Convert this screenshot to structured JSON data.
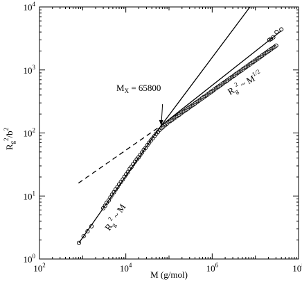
{
  "chart_data": {
    "type": "scatter",
    "title": "",
    "x_scale": "log",
    "y_scale": "log",
    "xlim": [
      100,
      100000000
    ],
    "ylim": [
      1,
      10000
    ],
    "grid": false,
    "xlabel": "M (g/mol)",
    "ylabel": {
      "base": "R",
      "sub": "g",
      "sup": "2",
      "tail": "/b",
      "tail_sup": "2"
    },
    "x_ticks": [
      {
        "value": 100,
        "base": "10",
        "exp": "2"
      },
      {
        "value": 10000,
        "base": "10",
        "exp": "4"
      },
      {
        "value": 1000000,
        "base": "10",
        "exp": "6"
      },
      {
        "value": 100000000,
        "base": "10",
        "exp": "8"
      }
    ],
    "y_ticks": [
      {
        "value": 1,
        "base": "10",
        "exp": "0"
      },
      {
        "value": 10,
        "base": "10",
        "exp": "1"
      },
      {
        "value": 100,
        "base": "10",
        "exp": "2"
      },
      {
        "value": 1000,
        "base": "10",
        "exp": "3"
      },
      {
        "value": 10000,
        "base": "10",
        "exp": "4"
      }
    ],
    "series": [
      {
        "style": "open-circles",
        "points": [
          [
            820,
            1.8
          ],
          [
            1050,
            2.3
          ],
          [
            1300,
            2.75
          ],
          [
            1600,
            3.3
          ],
          [
            3000,
            6.4
          ],
          [
            3300,
            7.0
          ],
          [
            3600,
            7.8
          ],
          [
            4000,
            8.5
          ],
          [
            4400,
            9.5
          ],
          [
            4800,
            10.5
          ],
          [
            5300,
            11.5
          ],
          [
            5800,
            12.7
          ],
          [
            6400,
            13.9
          ],
          [
            7000,
            15.3
          ],
          [
            7700,
            16.7
          ],
          [
            8500,
            18.3
          ],
          [
            9300,
            20.2
          ],
          [
            10200,
            22
          ],
          [
            11200,
            24
          ],
          [
            12300,
            27
          ],
          [
            13500,
            29
          ],
          [
            14800,
            32
          ],
          [
            16300,
            35
          ],
          [
            17900,
            38
          ],
          [
            19700,
            41
          ],
          [
            21600,
            45
          ],
          [
            23800,
            49
          ],
          [
            26100,
            54
          ],
          [
            28700,
            58
          ],
          [
            31500,
            64
          ],
          [
            34600,
            70
          ],
          [
            38000,
            76
          ],
          [
            41800,
            82
          ],
          [
            45900,
            89
          ],
          [
            50400,
            97
          ],
          [
            55400,
            104
          ],
          [
            60800,
            112
          ],
          [
            66800,
            119
          ],
          [
            73400,
            126
          ],
          [
            80600,
            133
          ],
          [
            88600,
            140
          ],
          [
            97300,
            148
          ],
          [
            106900,
            155
          ],
          [
            117500,
            162
          ],
          [
            129100,
            170
          ],
          [
            141800,
            178
          ],
          [
            155800,
            186
          ],
          [
            171200,
            195
          ],
          [
            188100,
            204
          ],
          [
            206700,
            214
          ],
          [
            227100,
            224
          ],
          [
            249500,
            234
          ],
          [
            274100,
            245
          ],
          [
            301200,
            257
          ],
          [
            330900,
            269
          ],
          [
            363600,
            281
          ],
          [
            399500,
            294
          ],
          [
            438900,
            308
          ],
          [
            482300,
            323
          ],
          [
            529900,
            338
          ],
          [
            582200,
            354
          ],
          [
            639700,
            371
          ],
          [
            702900,
            388
          ],
          [
            772300,
            406
          ],
          [
            848500,
            425
          ],
          [
            932300,
            446
          ],
          [
            1024000,
            467
          ],
          [
            1125000,
            489
          ],
          [
            1236000,
            512
          ],
          [
            1358000,
            536
          ],
          [
            1492000,
            561
          ],
          [
            1640000,
            587
          ],
          [
            1802000,
            615
          ],
          [
            1980000,
            644
          ],
          [
            2175000,
            674
          ],
          [
            2390000,
            706
          ],
          [
            2626000,
            739
          ],
          [
            2885000,
            774
          ],
          [
            3170000,
            810
          ],
          [
            3483000,
            848
          ],
          [
            3827000,
            888
          ],
          [
            4205000,
            930
          ],
          [
            4620000,
            973
          ],
          [
            5076000,
            1019
          ],
          [
            5577000,
            1067
          ],
          [
            6128000,
            1117
          ],
          [
            6733000,
            1169
          ],
          [
            7398000,
            1224
          ],
          [
            8128000,
            1281
          ],
          [
            8931000,
            1341
          ],
          [
            9813000,
            1404
          ],
          [
            10780000,
            1470
          ],
          [
            11850000,
            1539
          ],
          [
            13020000,
            1611
          ],
          [
            14300000,
            1687
          ],
          [
            15710000,
            1766
          ],
          [
            17260000,
            1849
          ],
          [
            18970000,
            1935
          ],
          [
            20840000,
            2026
          ],
          [
            22900000,
            2121
          ],
          [
            25160000,
            2221
          ],
          [
            27640000,
            2325
          ],
          [
            30370000,
            2434
          ],
          [
            21000000,
            3000
          ],
          [
            23000000,
            3100
          ],
          [
            26000000,
            3300
          ],
          [
            31000000,
            4000
          ],
          [
            40000000,
            4400
          ]
        ]
      }
    ],
    "fit_lines": [
      {
        "style": "solid",
        "points": [
          [
            820,
            1.8
          ],
          [
            65800,
            131
          ],
          [
            7500000,
            10000
          ]
        ]
      },
      {
        "style": "solid",
        "points": [
          [
            65800,
            131
          ],
          [
            40000000,
            4200
          ]
        ]
      },
      {
        "style": "dashed",
        "points": [
          [
            800,
            16
          ],
          [
            65800,
            131
          ]
        ]
      }
    ],
    "annotations": {
      "crossover": {
        "label_base": "M",
        "label_sub": "X",
        "label_rest": " = 65800",
        "arrow_to": [
          65800,
          131
        ]
      },
      "low_slope": {
        "base": "R",
        "sub": "g",
        "sup": "2",
        "rel": " ~ M"
      },
      "high_slope": {
        "base": "R",
        "sub": "g",
        "sup": "2",
        "rel": " ~ M",
        "rel_sup": "1/2"
      }
    }
  }
}
